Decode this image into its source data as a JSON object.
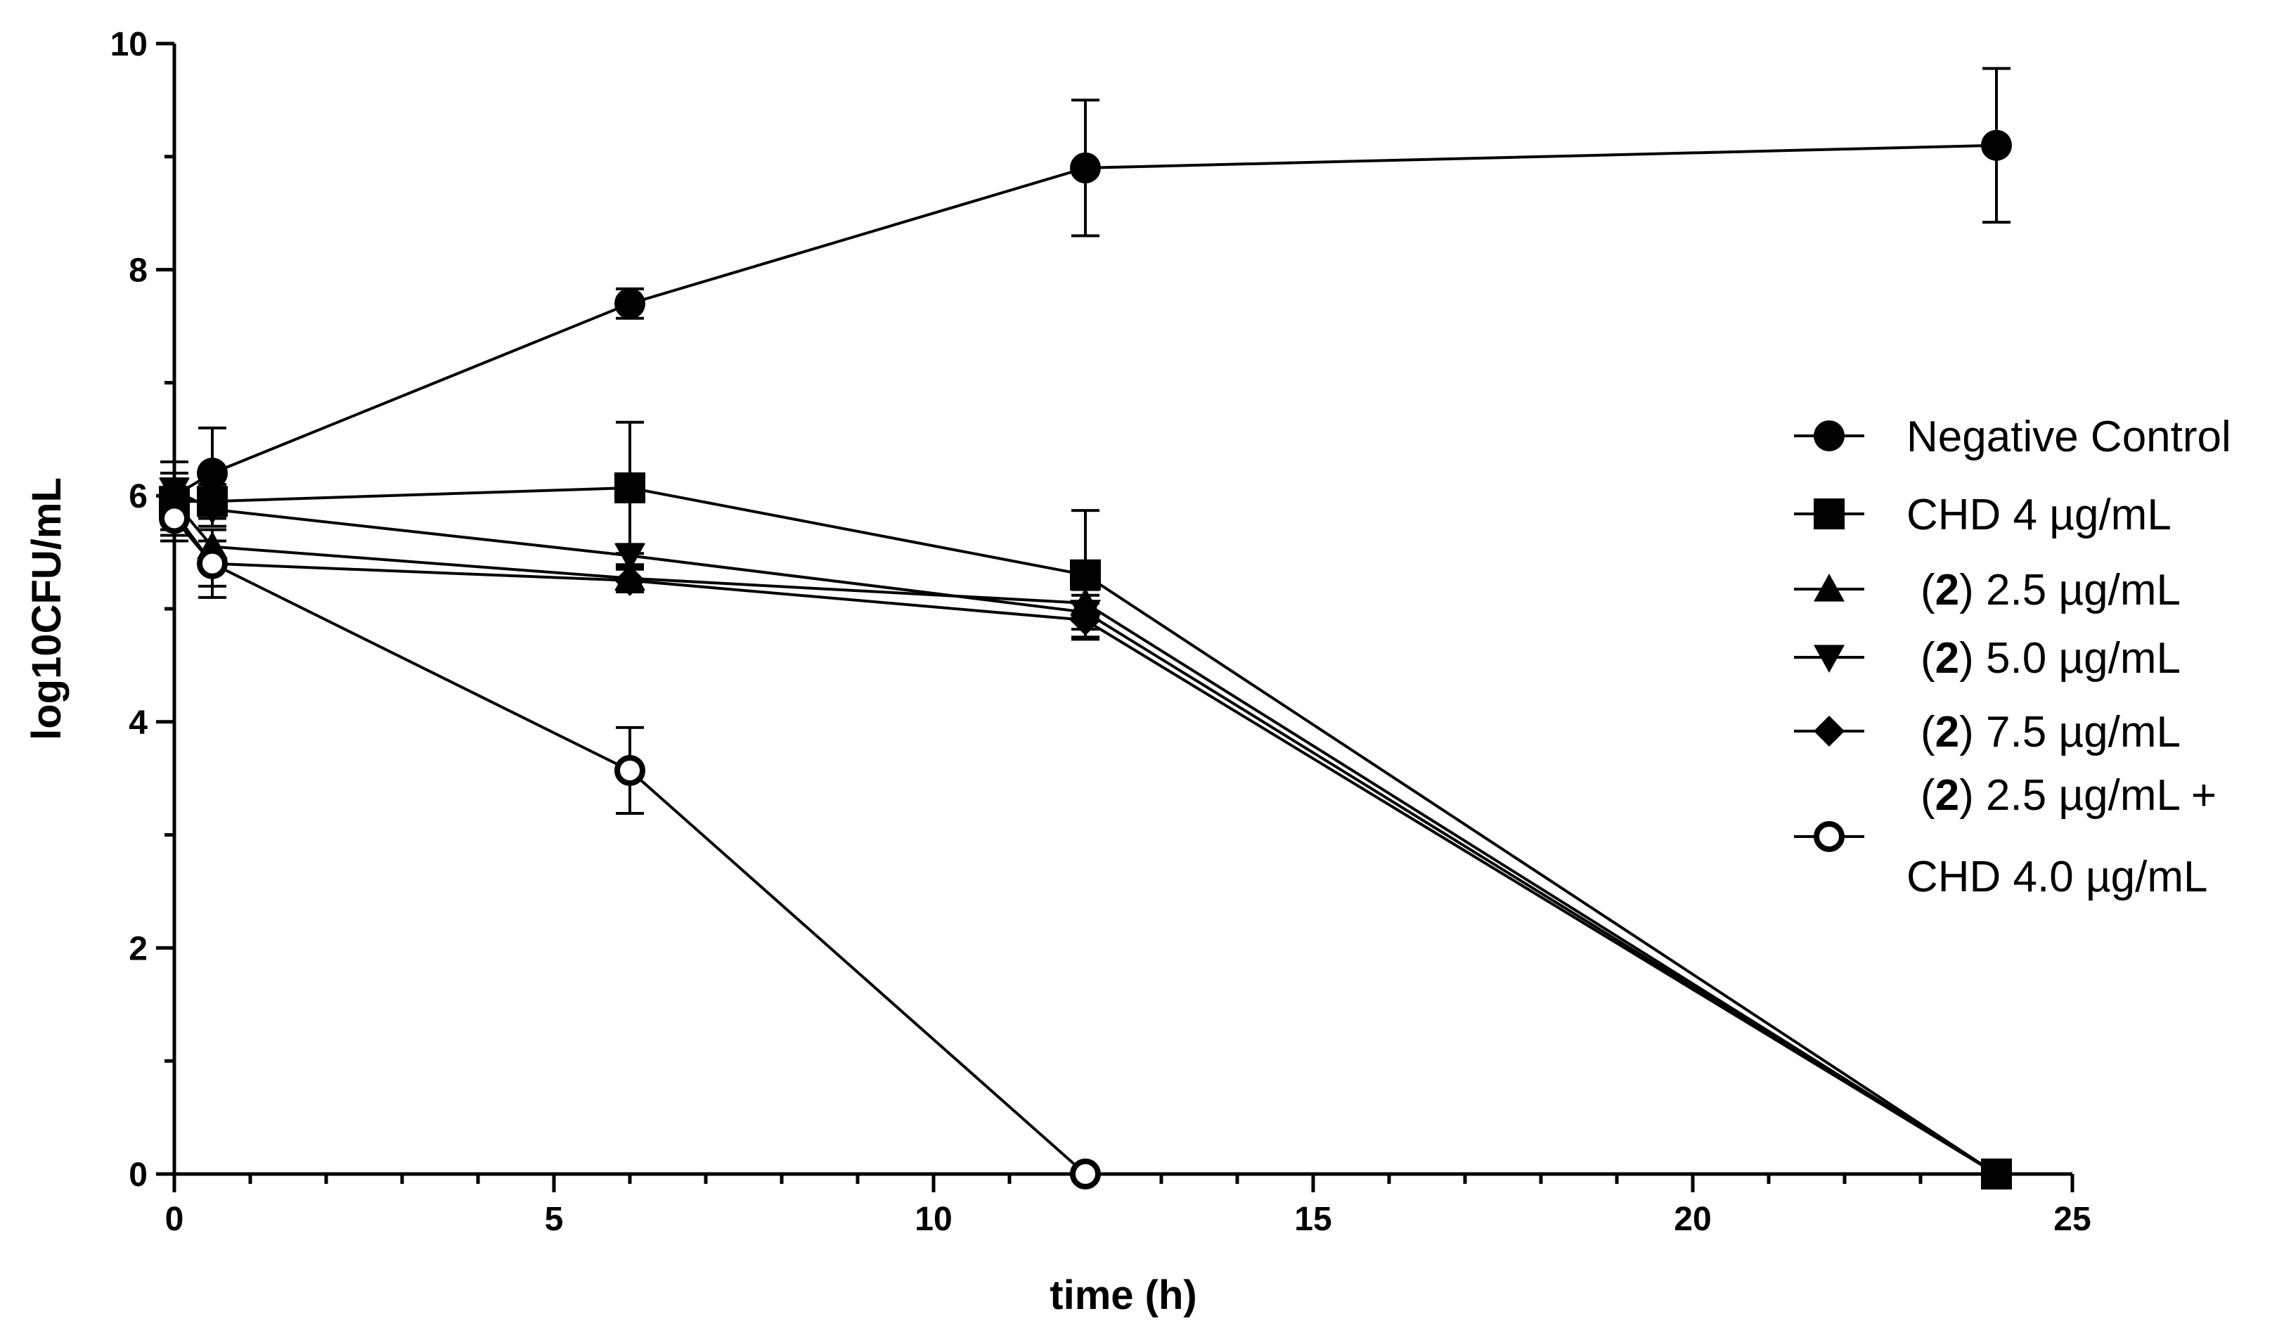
{
  "chart_data": {
    "type": "line",
    "title": "",
    "xlabel": "time (h)",
    "ylabel": "log10CFU/mL",
    "xlim": [
      0,
      25
    ],
    "ylim": [
      0,
      10
    ],
    "xticks": [
      0,
      5,
      10,
      15,
      20,
      25
    ],
    "yticks": [
      0,
      2,
      4,
      6,
      8,
      10
    ],
    "x_tick_labels": [
      "0",
      "5",
      "10",
      "15",
      "20",
      "25"
    ],
    "y_tick_labels": [
      "0",
      "2",
      "4",
      "6",
      "8",
      "10"
    ],
    "grid": false,
    "legend_position": "right",
    "series": [
      {
        "name": "Negative Control",
        "legend": [
          "Negative Control"
        ],
        "marker": "circle-filled",
        "x": [
          0,
          0.5,
          6,
          12,
          24
        ],
        "y": [
          6.0,
          6.2,
          7.7,
          8.9,
          9.1
        ],
        "err": [
          0.3,
          0.4,
          0.13,
          0.6,
          0.68
        ]
      },
      {
        "name": "CHD 4 µg/mL",
        "legend": [
          "CHD 4 µg/mL"
        ],
        "marker": "square",
        "x": [
          0,
          0.5,
          6,
          12,
          24
        ],
        "y": [
          5.95,
          5.95,
          6.07,
          5.3,
          0
        ],
        "err": [
          0.2,
          0.15,
          0.58,
          0.57,
          0
        ]
      },
      {
        "name": "(2) 2.5 µg/mL",
        "legend": [
          "(",
          "2",
          ") 2.5 µg/mL"
        ],
        "marker": "triangle-up",
        "x": [
          0,
          0.5,
          6,
          12,
          24
        ],
        "y": [
          5.95,
          5.55,
          5.27,
          5.05,
          0
        ],
        "err": [
          0.2,
          0.15,
          0.12,
          0.12,
          0
        ]
      },
      {
        "name": "(2) 5.0 µg/mL",
        "legend": [
          "(",
          "2",
          ") 5.0 µg/mL"
        ],
        "marker": "triangle-down",
        "x": [
          0,
          0.5,
          6,
          12,
          24
        ],
        "y": [
          6.05,
          5.88,
          5.47,
          4.97,
          0
        ],
        "err": [
          0.15,
          0.15,
          0.1,
          0.15,
          0
        ]
      },
      {
        "name": "(2) 7.5 µg/mL",
        "legend": [
          "(",
          "2",
          ") 7.5 µg/mL"
        ],
        "marker": "diamond",
        "x": [
          0,
          0.5,
          6,
          12,
          24
        ],
        "y": [
          5.85,
          5.4,
          5.25,
          4.9,
          0
        ],
        "err": [
          0.2,
          0.2,
          0.1,
          0.15,
          0
        ]
      },
      {
        "name": "(2) 2.5 µg/mL + CHD 4.0 µg/mL",
        "legend": [
          "(",
          "2",
          ") 2.5 µg/mL +",
          "CHD 4.0 µg/mL"
        ],
        "marker": "circle-open",
        "x": [
          0,
          0.5,
          6,
          12
        ],
        "y": [
          5.8,
          5.4,
          3.57,
          0
        ],
        "err": [
          0.2,
          0.3,
          0.38,
          0
        ]
      }
    ]
  }
}
